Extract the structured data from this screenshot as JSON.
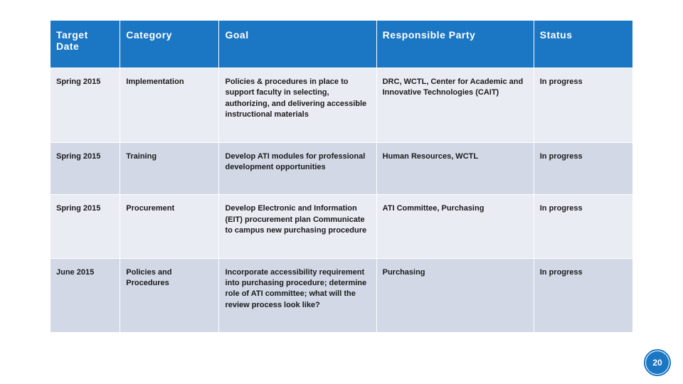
{
  "colors": {
    "header_bg": "#1b76c4",
    "header_text": "#ffffff",
    "row_odd": "#e9ecf3",
    "row_even": "#d2d8e6",
    "body_text": "#1a1a1a",
    "badge_fill": "#1b76c4",
    "badge_ring": "#1b76c4",
    "badge_text": "#ffffff",
    "background": "#ffffff",
    "border": "#ffffff"
  },
  "table": {
    "column_widths": [
      "12%",
      "17%",
      "27%",
      "27%",
      "17%"
    ],
    "headers": [
      "Target Date",
      "Category",
      "Goal",
      "Responsible Party",
      "Status"
    ],
    "rows": [
      {
        "target_date": "Spring 2015",
        "category": "Implementation",
        "goal": "Policies & procedures in place to support faculty in selecting, authorizing, and delivering accessible instructional materials",
        "responsible_party": "DRC, WCTL, Center for Academic and Innovative Technologies (CAIT)",
        "status": "In progress"
      },
      {
        "target_date": "Spring 2015",
        "category": "Training",
        "goal": "Develop ATI modules for professional development opportunities",
        "responsible_party": "Human Resources, WCTL",
        "status": "In progress"
      },
      {
        "target_date": "Spring 2015",
        "category": "Procurement",
        "goal": "Develop Electronic and Information (EIT) procurement plan Communicate to campus new purchasing procedure",
        "responsible_party": "ATI Committee, Purchasing",
        "status": "In progress"
      },
      {
        "target_date": "June 2015",
        "category": "Policies and Procedures",
        "goal": "Incorporate accessibility requirement into purchasing procedure; determine role of ATI committee; what will the review process look like?",
        "responsible_party": "Purchasing",
        "status": "In progress"
      }
    ]
  },
  "page_number": "20"
}
